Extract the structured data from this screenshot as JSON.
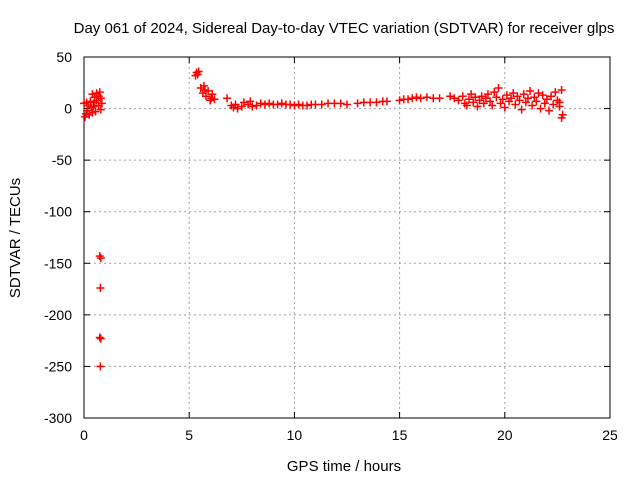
{
  "chart_data": {
    "type": "scatter",
    "title": "Day 061 of 2024, Sidereal Day-to-day VTEC variation (SDTVAR) for receiver glps",
    "xlabel": "GPS time / hours",
    "ylabel": "SDTVAR / TECUs",
    "xlim": [
      0,
      25
    ],
    "ylim": [
      -300,
      50
    ],
    "xticks": [
      0,
      5,
      10,
      15,
      20,
      25
    ],
    "yticks": [
      50,
      0,
      -50,
      -100,
      -150,
      -200,
      -250,
      -300
    ],
    "grid": true,
    "legend": "none",
    "marker": "plus",
    "series": [
      {
        "name": "SDTVAR",
        "color": "#ff0000",
        "points": [
          [
            0.0,
            5
          ],
          [
            0.05,
            -8
          ],
          [
            0.1,
            -5
          ],
          [
            0.12,
            6
          ],
          [
            0.15,
            -2
          ],
          [
            0.2,
            3
          ],
          [
            0.25,
            -6
          ],
          [
            0.3,
            7
          ],
          [
            0.35,
            1
          ],
          [
            0.4,
            -4
          ],
          [
            0.45,
            2
          ],
          [
            0.5,
            6
          ],
          [
            0.55,
            -3
          ],
          [
            0.6,
            8
          ],
          [
            0.4,
            14
          ],
          [
            0.5,
            11
          ],
          [
            0.6,
            15
          ],
          [
            0.7,
            12
          ],
          [
            0.75,
            16
          ],
          [
            0.8,
            10
          ],
          [
            0.7,
            3
          ],
          [
            0.8,
            -1
          ],
          [
            0.85,
            5
          ],
          [
            0.75,
            -143
          ],
          [
            0.8,
            -145
          ],
          [
            0.78,
            -174
          ],
          [
            0.75,
            -222
          ],
          [
            0.8,
            -223
          ],
          [
            0.78,
            -250
          ],
          [
            5.3,
            32
          ],
          [
            5.35,
            35
          ],
          [
            5.4,
            33
          ],
          [
            5.45,
            36
          ],
          [
            5.55,
            20
          ],
          [
            5.65,
            15
          ],
          [
            5.7,
            22
          ],
          [
            5.75,
            18
          ],
          [
            5.8,
            12
          ],
          [
            5.9,
            17
          ],
          [
            6.0,
            8
          ],
          [
            6.05,
            10
          ],
          [
            6.1,
            14
          ],
          [
            6.2,
            9
          ],
          [
            6.8,
            10
          ],
          [
            7.0,
            3
          ],
          [
            7.1,
            1
          ],
          [
            7.2,
            4
          ],
          [
            7.3,
            0
          ],
          [
            7.5,
            2
          ],
          [
            7.6,
            6
          ],
          [
            7.8,
            4
          ],
          [
            7.9,
            7
          ],
          [
            8.0,
            2
          ],
          [
            8.2,
            3
          ],
          [
            8.4,
            5
          ],
          [
            8.6,
            4
          ],
          [
            8.8,
            5
          ],
          [
            9.0,
            4
          ],
          [
            9.2,
            4
          ],
          [
            9.4,
            5
          ],
          [
            9.6,
            4
          ],
          [
            9.8,
            4
          ],
          [
            10.0,
            3
          ],
          [
            10.2,
            4
          ],
          [
            10.4,
            3
          ],
          [
            10.6,
            3
          ],
          [
            10.8,
            4
          ],
          [
            11.0,
            4
          ],
          [
            11.3,
            4
          ],
          [
            11.6,
            5
          ],
          [
            11.9,
            5
          ],
          [
            12.2,
            5
          ],
          [
            12.5,
            4
          ],
          [
            13.0,
            5
          ],
          [
            13.3,
            6
          ],
          [
            13.6,
            6
          ],
          [
            13.9,
            6
          ],
          [
            14.2,
            7
          ],
          [
            14.4,
            7
          ],
          [
            15.0,
            8
          ],
          [
            15.2,
            9
          ],
          [
            15.4,
            9
          ],
          [
            15.6,
            10
          ],
          [
            15.8,
            11
          ],
          [
            16.0,
            10
          ],
          [
            16.3,
            11
          ],
          [
            16.6,
            10
          ],
          [
            16.9,
            10
          ],
          [
            17.4,
            12
          ],
          [
            17.6,
            10
          ],
          [
            17.8,
            8
          ],
          [
            18.0,
            12
          ],
          [
            18.1,
            5
          ],
          [
            18.2,
            3
          ],
          [
            18.3,
            9
          ],
          [
            18.4,
            14
          ],
          [
            18.5,
            6
          ],
          [
            18.6,
            11
          ],
          [
            18.7,
            2
          ],
          [
            18.8,
            8
          ],
          [
            18.9,
            12
          ],
          [
            19.0,
            5
          ],
          [
            19.1,
            10
          ],
          [
            19.2,
            14
          ],
          [
            19.3,
            7
          ],
          [
            19.4,
            3
          ],
          [
            19.5,
            16
          ],
          [
            19.6,
            11
          ],
          [
            19.7,
            20
          ],
          [
            19.8,
            5
          ],
          [
            19.9,
            9
          ],
          [
            20.0,
            1
          ],
          [
            20.1,
            13
          ],
          [
            20.2,
            7
          ],
          [
            20.3,
            10
          ],
          [
            20.4,
            15
          ],
          [
            20.5,
            4
          ],
          [
            20.6,
            12
          ],
          [
            20.7,
            8
          ],
          [
            20.8,
            -1
          ],
          [
            20.9,
            14
          ],
          [
            21.0,
            6
          ],
          [
            21.1,
            10
          ],
          [
            21.2,
            17
          ],
          [
            21.3,
            3
          ],
          [
            21.4,
            11
          ],
          [
            21.5,
            7
          ],
          [
            21.6,
            15
          ],
          [
            21.7,
            0
          ],
          [
            21.8,
            13
          ],
          [
            21.9,
            5
          ],
          [
            22.0,
            9
          ],
          [
            22.1,
            -2
          ],
          [
            22.2,
            12
          ],
          [
            22.3,
            4
          ],
          [
            22.4,
            16
          ],
          [
            22.5,
            8
          ],
          [
            22.6,
            2
          ],
          [
            22.7,
            18
          ],
          [
            22.75,
            -6
          ],
          [
            22.7,
            -9
          ],
          [
            22.6,
            6
          ]
        ]
      }
    ]
  }
}
